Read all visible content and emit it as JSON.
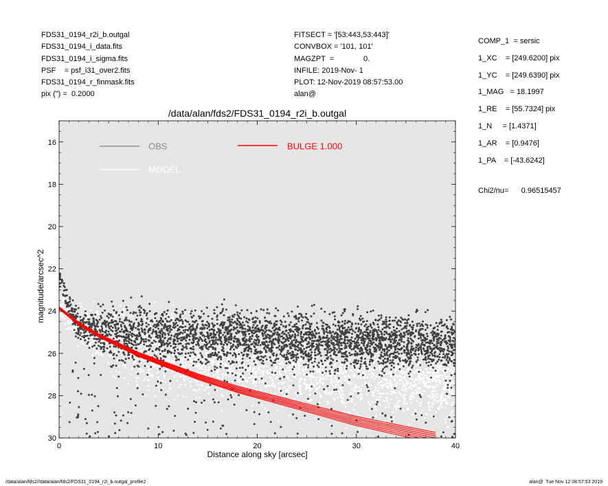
{
  "header": {
    "left": [
      "FDS31_0194_r2i_b.outgal",
      "FDS31_0194_i_data.fits",
      "FDS31_0194_i_sigma.fits",
      "PSF    = psf_i31_over2.fits",
      "FDS31_0194_r_finmask.fits",
      "pix (\") =  0.2000"
    ],
    "middle": [
      "FITSECT = '[53:443,53:443]'",
      "CONVBOX = '101, 101'",
      "MAGZPT  =              0.",
      "INFILE: 2019-Nov- 1",
      "PLOT: 12-Nov-2019 08:57:53.00",
      "alan@"
    ],
    "params": [
      "COMP_1  = sersic",
      "1_XC    = [249.6200] pix",
      "1_YC    = [249.6390] pix",
      "1_MAG   = 18.1997",
      "1_RE    = [55.7324] pix",
      "1_N     = [1.4371]",
      "1_AR    = [0.9476]",
      "1_PA    = [-43.6242]"
    ],
    "chi2": "Chi2/nu=      0.96515457"
  },
  "footer": {
    "left": "/data/alan/fds2//data/alan/fds2/FDS31_0194_r2i_b.outgal_profile2",
    "right": "alan@  Tue Nov 12 08:57:53 2019"
  },
  "colors": {
    "plot_bg": "#e5e5e5",
    "obs": "#404040",
    "model": "#ffffff",
    "bulge": "#ff0000",
    "legend_obs_text": "#8c8c8c",
    "axis": "#000000"
  },
  "chart_data": {
    "type": "scatter",
    "title": "/data/alan/fds2/FDS31_0194_r2i_b.outgal",
    "xlabel": "Distance along sky [arcsec]",
    "ylabel": "magnitude/arcsec^2",
    "xlim": [
      0,
      40
    ],
    "ylim": [
      30,
      15
    ],
    "y_inverted": true,
    "x_ticks": [
      0,
      10,
      20,
      30,
      40
    ],
    "y_ticks": [
      16,
      18,
      20,
      22,
      24,
      26,
      28,
      30
    ],
    "grid": false,
    "legend": [
      {
        "label": "OBS",
        "color": "#8c8c8c",
        "line_color": "#808080",
        "placement": "top-left"
      },
      {
        "label": "MODEL",
        "color": "#ffffff",
        "line_color": "#ffffff",
        "placement": "top-left"
      },
      {
        "label": "BULGE  1.000",
        "color": "#ff0000",
        "line_color": "#ff0000",
        "placement": "top-center"
      }
    ],
    "series": [
      {
        "name": "BULGE  1.000",
        "kind": "line",
        "color": "#ff0000",
        "x": [
          0,
          2,
          4,
          6,
          8,
          10,
          12,
          14,
          16,
          18,
          20,
          22,
          24,
          26,
          28,
          30,
          32,
          34,
          36,
          38
        ],
        "y": [
          23.85,
          24.6,
          25.15,
          25.6,
          26.05,
          26.4,
          26.75,
          27.1,
          27.4,
          27.7,
          27.95,
          28.2,
          28.45,
          28.7,
          28.95,
          29.2,
          29.4,
          29.6,
          29.8,
          30.0
        ]
      },
      {
        "name": "OBS",
        "kind": "points",
        "color": "#404040",
        "x": [
          0.2,
          0.4,
          0.6,
          0.8,
          1.0,
          1.2,
          1.5,
          2.0,
          3.0,
          5.0,
          8.0,
          10,
          15,
          20,
          25,
          30,
          35,
          39.8
        ],
        "y": [
          22.5,
          22.9,
          23.3,
          23.6,
          23.8,
          24.0,
          24.3,
          24.6,
          24.8,
          25.0,
          25.1,
          25.2,
          25.3,
          25.4,
          25.45,
          25.5,
          25.5,
          25.55
        ]
      },
      {
        "name": "MODEL",
        "kind": "points",
        "color": "#ffffff",
        "x": [
          0.5,
          2,
          5,
          10,
          15,
          20,
          25,
          30,
          35,
          39.8
        ],
        "y": [
          24.0,
          24.6,
          25.3,
          25.9,
          26.3,
          26.6,
          26.9,
          27.1,
          27.3,
          27.5
        ]
      }
    ]
  }
}
